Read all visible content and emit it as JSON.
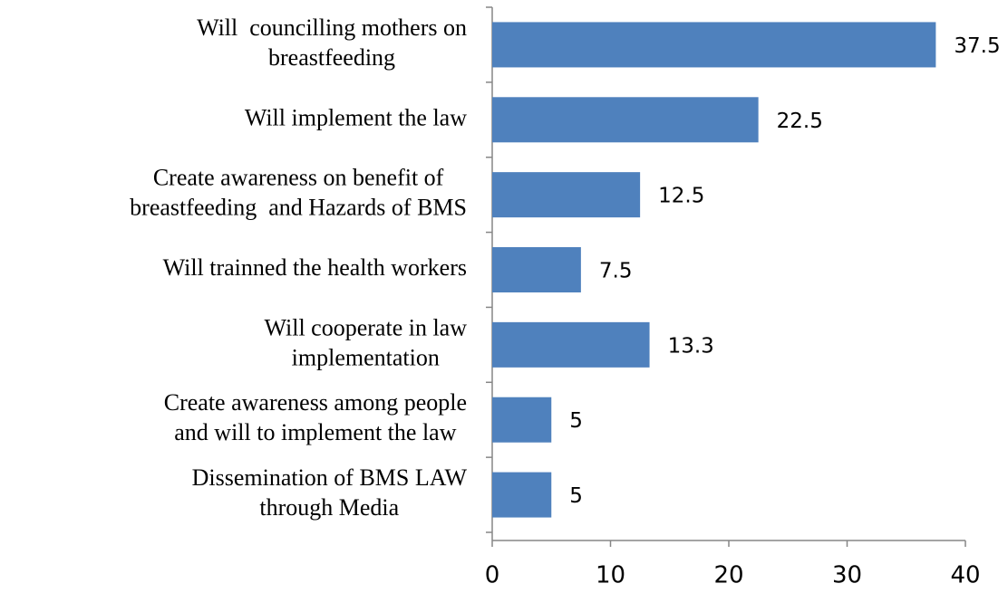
{
  "chart_data": {
    "type": "barh",
    "categories": [
      "Will  councilling mothers on\nbreastfeeding",
      "Will implement the law",
      "Create awareness on benefit of\nbreastfeeding  and Hazards of BMS",
      "Will trainned the health workers",
      "Will cooperate in law\nimplementation",
      "Create awareness among people\nand will to implement the law",
      "Dissemination of BMS LAW\nthrough Media"
    ],
    "values": [
      37.5,
      22.5,
      12.5,
      7.5,
      13.3,
      5,
      5
    ],
    "color": "#4f81bd",
    "xlim": [
      0,
      40
    ],
    "xticks": [
      0,
      10,
      20,
      30,
      40
    ]
  }
}
